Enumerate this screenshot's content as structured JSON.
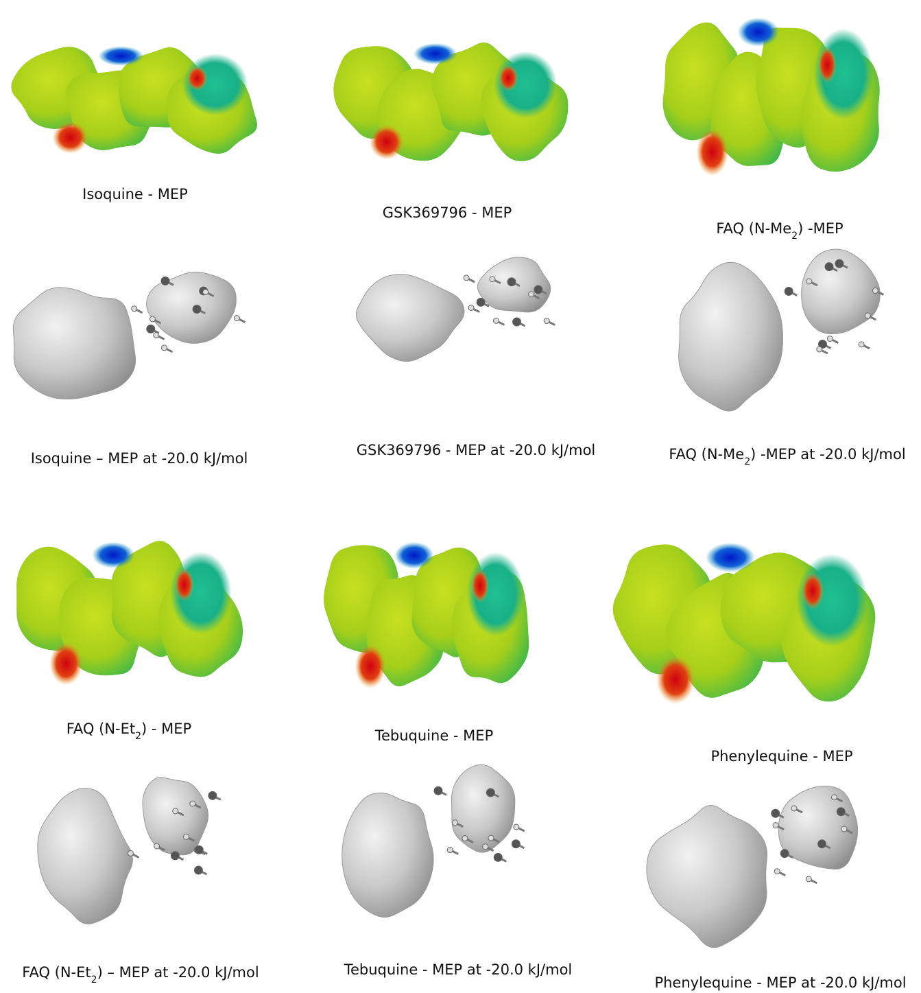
{
  "panels": [
    {
      "caption": [
        "Isoquine - MEP"
      ]
    },
    {
      "caption": [
        "GSK369796 - MEP"
      ]
    },
    {
      "caption": [
        "FAQ (N-Me",
        "2",
        ") -MEP"
      ]
    },
    {
      "caption": [
        "Isoquine – MEP at -20.0 kJ/mol"
      ]
    },
    {
      "caption": [
        "GSK369796 - MEP at -20.0 kJ/mol"
      ]
    },
    {
      "caption": [
        "FAQ (N-Me",
        "2",
        ") -MEP at -20.0 kJ/mol"
      ]
    },
    {
      "caption": [
        "FAQ (N-Et",
        "2",
        ") - MEP"
      ]
    },
    {
      "caption": [
        "Tebuquine - MEP"
      ]
    },
    {
      "caption": [
        "Phenylequine - MEP"
      ]
    },
    {
      "caption": [
        "FAQ (N-Et",
        "2",
        ") – MEP at -20.0 kJ/mol"
      ]
    },
    {
      "caption": [
        "Tebuquine - MEP at -20.0 kJ/mol"
      ]
    },
    {
      "caption": [
        "Phenylequine - MEP at -20.0 kJ/mol"
      ]
    }
  ]
}
